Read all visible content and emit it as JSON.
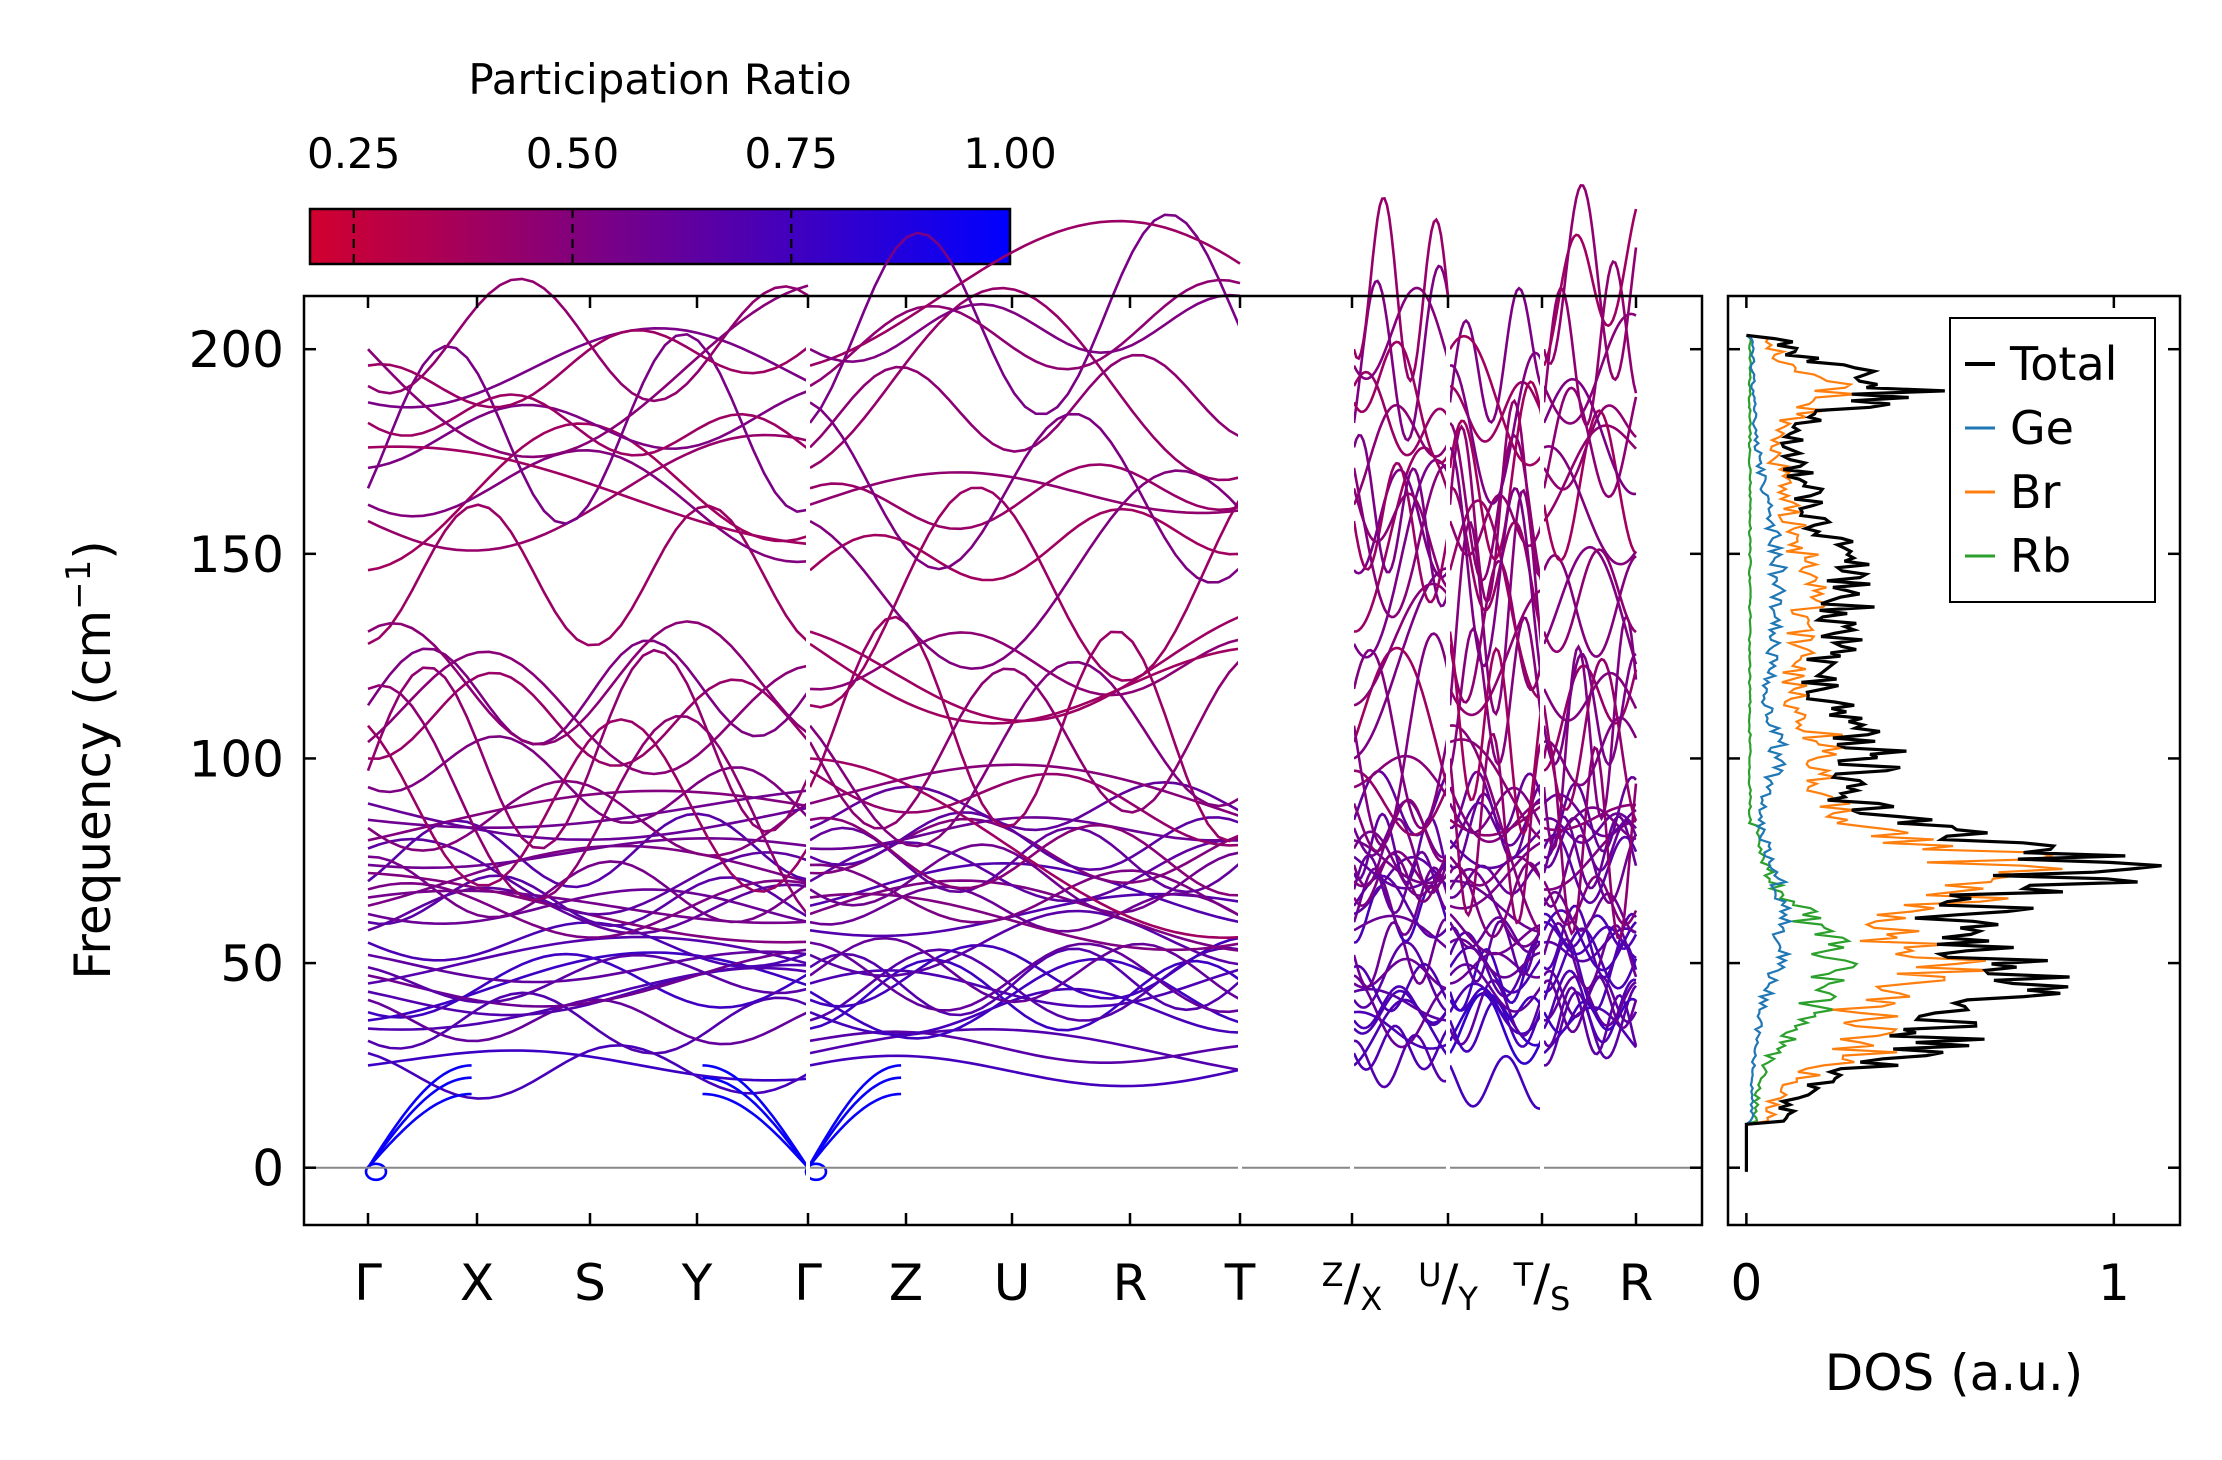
{
  "chart_data": [
    {
      "type": "line",
      "name": "phonon-band-structure",
      "ylabel": "Frequency (cm",
      "ylabel_sup": "−1",
      "ylabel_close": ")",
      "ylim": [
        -14,
        213
      ],
      "yticks": [
        0,
        50,
        100,
        150,
        200
      ],
      "yticklabels": [
        "0",
        "50",
        "100",
        "150",
        "200"
      ],
      "path_labels": [
        {
          "main": "Γ"
        },
        {
          "main": "X"
        },
        {
          "main": "S"
        },
        {
          "main": "Y"
        },
        {
          "main": "Γ"
        },
        {
          "main": "Z"
        },
        {
          "main": "U"
        },
        {
          "main": "R"
        },
        {
          "main": "T"
        },
        {
          "sup": "Z",
          "slash": "/",
          "sub": "X"
        },
        {
          "sup": "U",
          "slash": "/",
          "sub": "Y"
        },
        {
          "sup": "T",
          "slash": "/",
          "sub": "S"
        },
        {
          "main": "R"
        }
      ],
      "path_segment_breaks": [
        4,
        8,
        9,
        10,
        11
      ],
      "zero_line": 0,
      "colorbar": {
        "title": "Participation Ratio",
        "range": [
          0.2,
          1.0
        ],
        "ticks": [
          0.25,
          0.5,
          0.75,
          1.0
        ],
        "ticklabels": [
          "0.25",
          "0.50",
          "0.75",
          "1.00"
        ],
        "colors": [
          "#d2002e",
          "#0000ff"
        ]
      }
    },
    {
      "type": "line",
      "name": "density-of-states",
      "xlabel": "DOS (a.u.)",
      "xlim": [
        -0.05,
        1.18
      ],
      "xticks": [
        0,
        1
      ],
      "xticklabels": [
        "0",
        "1"
      ],
      "ylim": [
        -14,
        213
      ],
      "legend_position": "top-right",
      "series": [
        {
          "name": "Total",
          "color": "#000000",
          "peak": 1.13
        },
        {
          "name": "Ge",
          "color": "#1f77b4",
          "peak": 0.12
        },
        {
          "name": "Br",
          "color": "#ff7f0e",
          "peak": 0.86
        },
        {
          "name": "Rb",
          "color": "#2ca02c",
          "peak": 0.3
        }
      ]
    }
  ]
}
